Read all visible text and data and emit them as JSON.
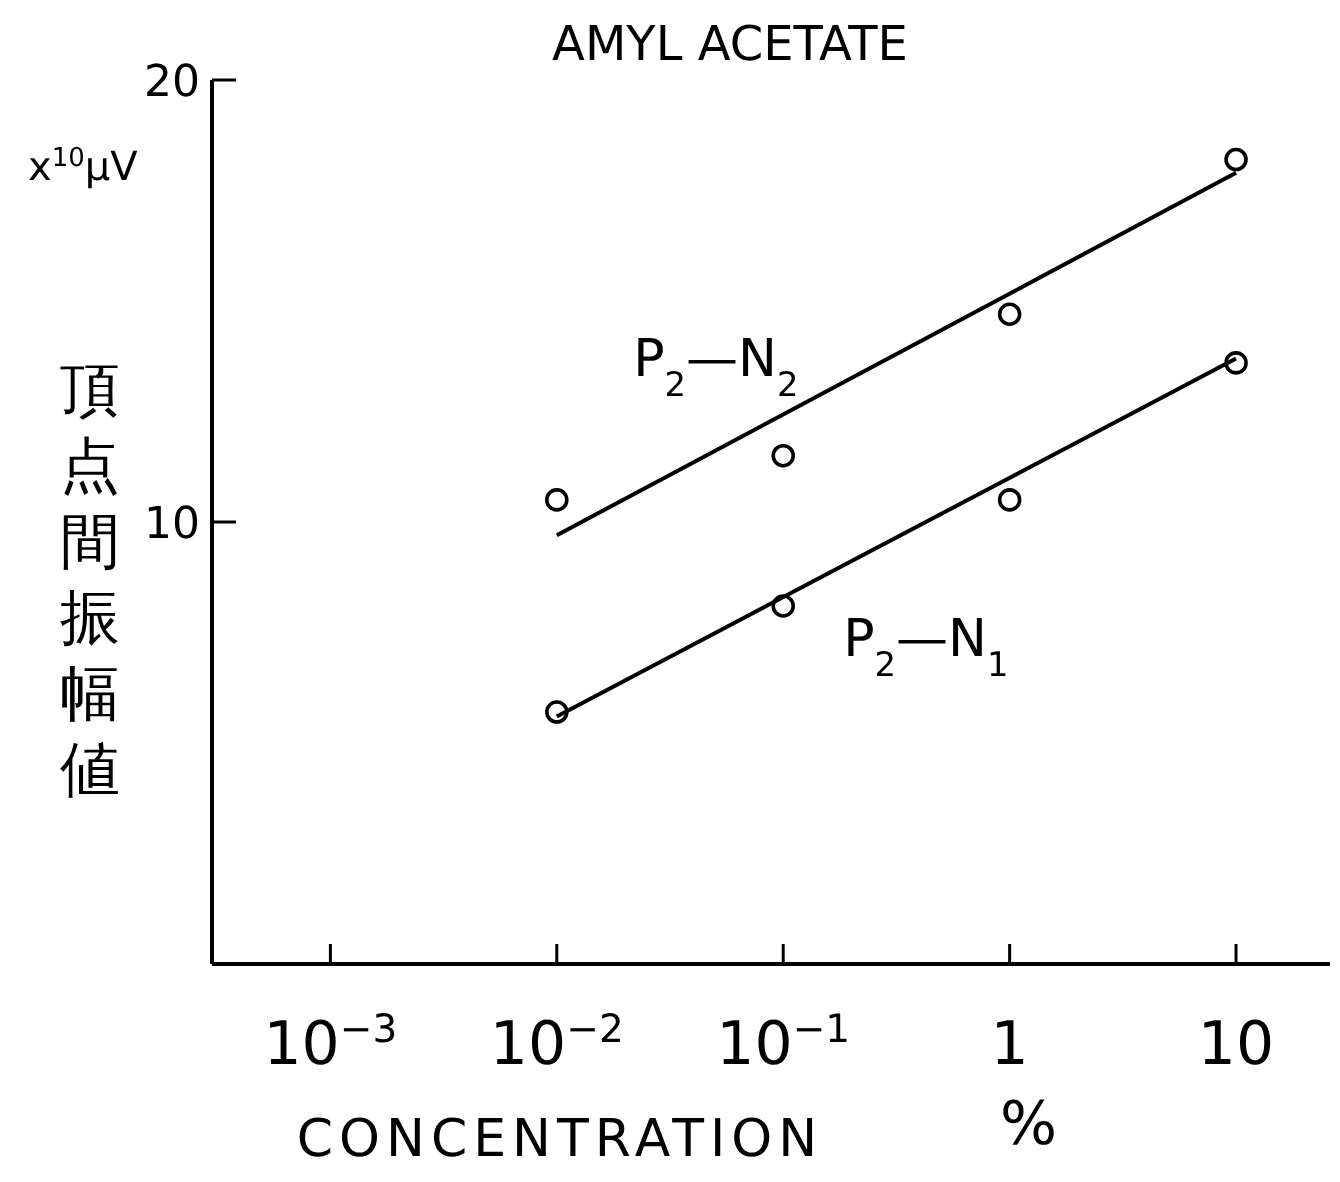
{
  "chart_data": {
    "type": "scatter",
    "title": "AMYL ACETATE",
    "xlabel": "CONCENTRATION",
    "ylabel": "頂点間振幅値",
    "annotations": [
      "x$^{10}$μV",
      "%"
    ],
    "log": "x",
    "xlim": [
      0.0003,
      26
    ],
    "xticks": [
      {
        "value": 0.001,
        "label": "10$^{−3}$"
      },
      {
        "value": 0.01,
        "label": "10$^{−2}$"
      },
      {
        "value": 0.1,
        "label": "10$^{−1}$"
      },
      {
        "value": 1,
        "label": "1"
      },
      {
        "value": 10,
        "label": "10"
      }
    ],
    "ylim": [
      0,
      20
    ],
    "yticks": [
      10,
      20
    ],
    "grid": false,
    "legend": false,
    "marker": "circle",
    "series": [
      {
        "name": "P$_{2}$—N$_{2}$",
        "type": "scatter",
        "color": "#000000",
        "x": [
          0.01,
          0.1,
          1,
          10
        ],
        "values": [
          10.5,
          11.5,
          14.7,
          18.2
        ]
      },
      {
        "type": "line",
        "marker": "none",
        "color": "#000000",
        "x": [
          0.01,
          10
        ],
        "values": [
          9.7,
          17.9
        ]
      },
      {
        "name": "P$_{2}$—N$_{1}$",
        "type": "scatter",
        "color": "#000000",
        "x": [
          0.01,
          0.1,
          1,
          10
        ],
        "values": [
          5.7,
          8.1,
          10.5,
          13.6
        ]
      },
      {
        "type": "line",
        "marker": "none",
        "color": "#000000",
        "x": [
          0.01,
          10
        ],
        "values": [
          5.6,
          13.7
        ]
      }
    ]
  }
}
